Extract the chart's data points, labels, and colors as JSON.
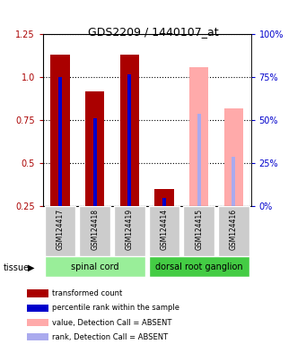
{
  "title": "GDS2209 / 1440107_at",
  "samples": [
    "GSM124417",
    "GSM124418",
    "GSM124419",
    "GSM124414",
    "GSM124415",
    "GSM124416"
  ],
  "groups": [
    {
      "name": "spinal cord",
      "indices": [
        0,
        1,
        2
      ],
      "color": "#99ee99"
    },
    {
      "name": "dorsal root ganglion",
      "indices": [
        3,
        4,
        5
      ],
      "color": "#44cc44"
    }
  ],
  "red_values": [
    1.13,
    0.92,
    1.13,
    0.35,
    null,
    null
  ],
  "blue_values": [
    1.0,
    0.76,
    1.02,
    0.3,
    null,
    null
  ],
  "pink_values": [
    null,
    null,
    null,
    null,
    1.06,
    0.82
  ],
  "lavender_values": [
    null,
    null,
    null,
    null,
    0.79,
    0.54
  ],
  "absent_flags": [
    false,
    false,
    false,
    false,
    true,
    true
  ],
  "ylim": [
    0.25,
    1.25
  ],
  "yticks_left": [
    0.25,
    0.5,
    0.75,
    1.0,
    1.25
  ],
  "yticks_right_vals": [
    0,
    25,
    50,
    75,
    100
  ],
  "red_color": "#aa0000",
  "blue_color": "#0000cc",
  "pink_color": "#ffaaaa",
  "lavender_color": "#aaaaee",
  "legend_items": [
    {
      "color": "#aa0000",
      "label": "transformed count"
    },
    {
      "color": "#0000cc",
      "label": "percentile rank within the sample"
    },
    {
      "color": "#ffaaaa",
      "label": "value, Detection Call = ABSENT"
    },
    {
      "color": "#aaaaee",
      "label": "rank, Detection Call = ABSENT"
    }
  ]
}
